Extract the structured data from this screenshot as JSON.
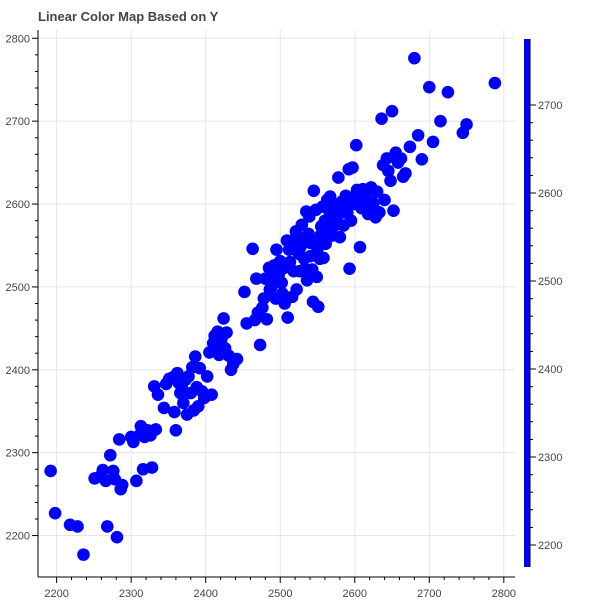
{
  "chart_data": {
    "type": "scatter",
    "title": "Linear Color Map Based on Y",
    "xlabel": "",
    "ylabel": "",
    "xlim": [
      2175,
      2815
    ],
    "ylim": [
      2150,
      2810
    ],
    "x_ticks": [
      "2200",
      "2300",
      "2400",
      "2500",
      "2600",
      "2700",
      "2800"
    ],
    "y_ticks": [
      "2200",
      "2300",
      "2400",
      "2500",
      "2600",
      "2700",
      "2800"
    ],
    "grid": true,
    "marker_color": "#0000ff",
    "colorbar": {
      "range": [
        2175,
        2775
      ],
      "ticks": [
        "2200",
        "2300",
        "2400",
        "2500",
        "2600",
        "2700"
      ],
      "color_low": "#0000ff",
      "color_high": "#0000ff",
      "placement": "right"
    },
    "points": [
      [
        2192,
        2278
      ],
      [
        2198,
        2227
      ],
      [
        2218,
        2213
      ],
      [
        2228,
        2211
      ],
      [
        2236,
        2177
      ],
      [
        2251,
        2269
      ],
      [
        2258,
        2271
      ],
      [
        2262,
        2279
      ],
      [
        2266,
        2266
      ],
      [
        2268,
        2211
      ],
      [
        2272,
        2297
      ],
      [
        2276,
        2278
      ],
      [
        2278,
        2268
      ],
      [
        2281,
        2198
      ],
      [
        2284,
        2316
      ],
      [
        2286,
        2256
      ],
      [
        2288,
        2261
      ],
      [
        2300,
        2319
      ],
      [
        2303,
        2313
      ],
      [
        2307,
        2266
      ],
      [
        2312,
        2322
      ],
      [
        2313,
        2332
      ],
      [
        2316,
        2280
      ],
      [
        2318,
        2319
      ],
      [
        2322,
        2327
      ],
      [
        2326,
        2321
      ],
      [
        2328,
        2282
      ],
      [
        2331,
        2380
      ],
      [
        2333,
        2328
      ],
      [
        2336,
        2370
      ],
      [
        2344,
        2354
      ],
      [
        2347,
        2383
      ],
      [
        2351,
        2389
      ],
      [
        2356,
        2391
      ],
      [
        2358,
        2349
      ],
      [
        2360,
        2327
      ],
      [
        2362,
        2396
      ],
      [
        2364,
        2384
      ],
      [
        2366,
        2372
      ],
      [
        2368,
        2378
      ],
      [
        2370,
        2360
      ],
      [
        2373,
        2388
      ],
      [
        2375,
        2346
      ],
      [
        2377,
        2392
      ],
      [
        2380,
        2372
      ],
      [
        2382,
        2403
      ],
      [
        2384,
        2351
      ],
      [
        2386,
        2416
      ],
      [
        2388,
        2379
      ],
      [
        2390,
        2356
      ],
      [
        2392,
        2402
      ],
      [
        2395,
        2374
      ],
      [
        2398,
        2366
      ],
      [
        2402,
        2392
      ],
      [
        2405,
        2421
      ],
      [
        2408,
        2370
      ],
      [
        2410,
        2432
      ],
      [
        2412,
        2441
      ],
      [
        2414,
        2425
      ],
      [
        2416,
        2446
      ],
      [
        2418,
        2418
      ],
      [
        2421,
        2437
      ],
      [
        2424,
        2462
      ],
      [
        2426,
        2426
      ],
      [
        2428,
        2445
      ],
      [
        2431,
        2417
      ],
      [
        2434,
        2400
      ],
      [
        2437,
        2407
      ],
      [
        2442,
        2413
      ],
      [
        2452,
        2494
      ],
      [
        2455,
        2456
      ],
      [
        2463,
        2546
      ],
      [
        2466,
        2460
      ],
      [
        2468,
        2510
      ],
      [
        2470,
        2469
      ],
      [
        2473,
        2430
      ],
      [
        2476,
        2475
      ],
      [
        2478,
        2486
      ],
      [
        2480,
        2510
      ],
      [
        2482,
        2461
      ],
      [
        2485,
        2523
      ],
      [
        2486,
        2497
      ],
      [
        2488,
        2499
      ],
      [
        2490,
        2511
      ],
      [
        2492,
        2526
      ],
      [
        2494,
        2486
      ],
      [
        2495,
        2545
      ],
      [
        2497,
        2519
      ],
      [
        2498,
        2515
      ],
      [
        2500,
        2531
      ],
      [
        2502,
        2505
      ],
      [
        2503,
        2492
      ],
      [
        2505,
        2523
      ],
      [
        2506,
        2480
      ],
      [
        2508,
        2525
      ],
      [
        2509,
        2556
      ],
      [
        2510,
        2463
      ],
      [
        2512,
        2545
      ],
      [
        2513,
        2530
      ],
      [
        2515,
        2555
      ],
      [
        2516,
        2488
      ],
      [
        2518,
        2519
      ],
      [
        2519,
        2547
      ],
      [
        2521,
        2567
      ],
      [
        2522,
        2497
      ],
      [
        2524,
        2560
      ],
      [
        2525,
        2540
      ],
      [
        2526,
        2519
      ],
      [
        2527,
        2548
      ],
      [
        2529,
        2575
      ],
      [
        2530,
        2555
      ],
      [
        2532,
        2534
      ],
      [
        2533,
        2522
      ],
      [
        2535,
        2591
      ],
      [
        2536,
        2508
      ],
      [
        2538,
        2564
      ],
      [
        2539,
        2585
      ],
      [
        2540,
        2537
      ],
      [
        2541,
        2553
      ],
      [
        2543,
        2521
      ],
      [
        2544,
        2482
      ],
      [
        2545,
        2616
      ],
      [
        2546,
        2554
      ],
      [
        2548,
        2593
      ],
      [
        2549,
        2512
      ],
      [
        2550,
        2546
      ],
      [
        2551,
        2476
      ],
      [
        2553,
        2534
      ],
      [
        2554,
        2562
      ],
      [
        2555,
        2573
      ],
      [
        2557,
        2597
      ],
      [
        2558,
        2535
      ],
      [
        2560,
        2580
      ],
      [
        2561,
        2552
      ],
      [
        2563,
        2605
      ],
      [
        2564,
        2568
      ],
      [
        2565,
        2593
      ],
      [
        2567,
        2609
      ],
      [
        2568,
        2585
      ],
      [
        2570,
        2562
      ],
      [
        2572,
        2600
      ],
      [
        2573,
        2574
      ],
      [
        2575,
        2591
      ],
      [
        2577,
        2586
      ],
      [
        2578,
        2632
      ],
      [
        2580,
        2560
      ],
      [
        2582,
        2590
      ],
      [
        2583,
        2603
      ],
      [
        2585,
        2574
      ],
      [
        2587,
        2598
      ],
      [
        2588,
        2610
      ],
      [
        2590,
        2589
      ],
      [
        2592,
        2642
      ],
      [
        2593,
        2522
      ],
      [
        2595,
        2580
      ],
      [
        2597,
        2644
      ],
      [
        2598,
        2600
      ],
      [
        2600,
        2609
      ],
      [
        2602,
        2671
      ],
      [
        2603,
        2617
      ],
      [
        2605,
        2603
      ],
      [
        2607,
        2548
      ],
      [
        2609,
        2595
      ],
      [
        2611,
        2618
      ],
      [
        2613,
        2605
      ],
      [
        2616,
        2610
      ],
      [
        2618,
        2588
      ],
      [
        2620,
        2598
      ],
      [
        2622,
        2620
      ],
      [
        2625,
        2601
      ],
      [
        2628,
        2584
      ],
      [
        2630,
        2615
      ],
      [
        2633,
        2590
      ],
      [
        2636,
        2703
      ],
      [
        2638,
        2647
      ],
      [
        2640,
        2605
      ],
      [
        2643,
        2655
      ],
      [
        2645,
        2640
      ],
      [
        2648,
        2628
      ],
      [
        2650,
        2712
      ],
      [
        2652,
        2592
      ],
      [
        2655,
        2662
      ],
      [
        2658,
        2650
      ],
      [
        2662,
        2655
      ],
      [
        2665,
        2633
      ],
      [
        2668,
        2637
      ],
      [
        2674,
        2669
      ],
      [
        2680,
        2776
      ],
      [
        2685,
        2683
      ],
      [
        2690,
        2654
      ],
      [
        2700,
        2741
      ],
      [
        2705,
        2675
      ],
      [
        2715,
        2700
      ],
      [
        2725,
        2735
      ],
      [
        2745,
        2686
      ],
      [
        2750,
        2696
      ],
      [
        2788,
        2746
      ]
    ]
  }
}
